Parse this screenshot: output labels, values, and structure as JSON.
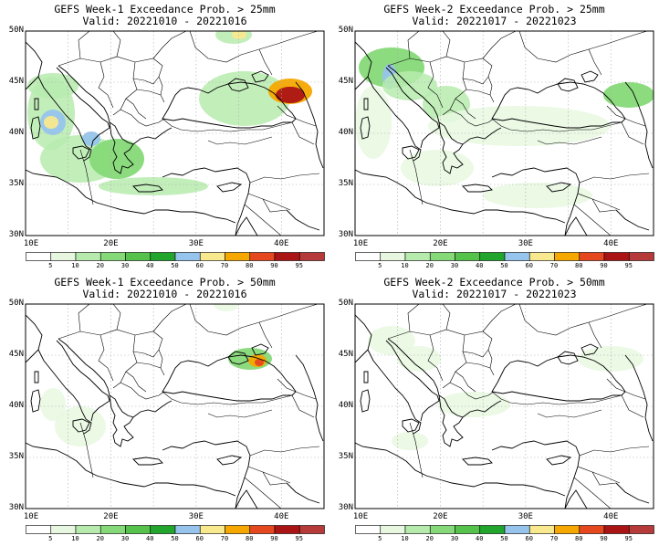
{
  "panels": [
    {
      "line1": "GEFS Week-1 Exceedance Prob. > 25mm",
      "line2": "Valid: 20221010 - 20221016"
    },
    {
      "line1": "GEFS Week-2 Exceedance Prob. > 25mm",
      "line2": "Valid: 20221017 - 20221023"
    },
    {
      "line1": "GEFS Week-1 Exceedance Prob. > 50mm",
      "line2": "Valid: 20221010 - 20221016"
    },
    {
      "line1": "GEFS Week-2 Exceedance Prob. > 50mm",
      "line2": "Valid: 20221017 - 20221023"
    }
  ],
  "lat_labels": [
    "50N",
    "45N",
    "40N",
    "35N",
    "30N"
  ],
  "lon_labels": [
    "10E",
    "20E",
    "30E",
    "40E"
  ],
  "colorbar": {
    "labels": [
      "5",
      "10",
      "20",
      "30",
      "40",
      "50",
      "60",
      "70",
      "80",
      "90",
      "95"
    ],
    "colors": [
      "#ffffff",
      "#e8f8e0",
      "#b7ebae",
      "#86d978",
      "#55c34b",
      "#22a52d",
      "#97c4ec",
      "#f8e98f",
      "#f6a800",
      "#e5481e",
      "#aa1414",
      "#b73a3a"
    ]
  }
}
